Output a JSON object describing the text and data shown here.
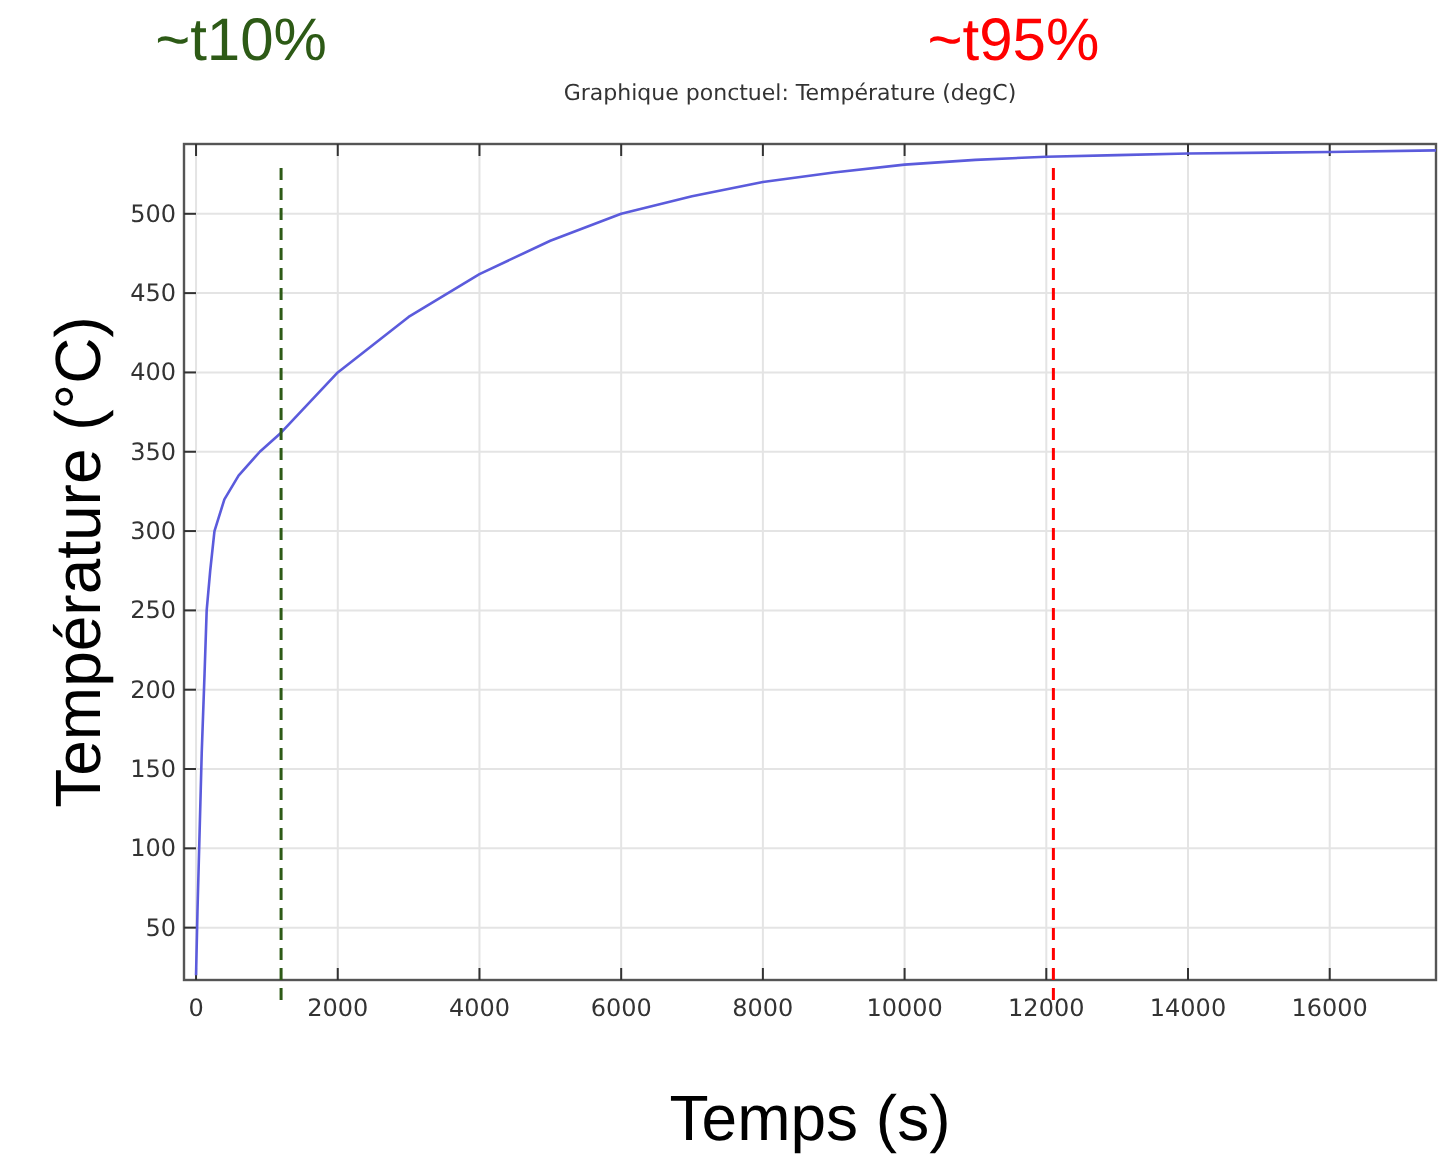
{
  "chart_data": {
    "type": "line",
    "title": "Graphique ponctuel: Température (degC)",
    "xlabel": "Temps (s)",
    "ylabel": "Température (°C)",
    "x": [
      0,
      20,
      50,
      80,
      120,
      150,
      200,
      260,
      400,
      600,
      900,
      1200,
      2000,
      3000,
      4000,
      5000,
      6000,
      7000,
      8000,
      9000,
      10000,
      11000,
      12000,
      13000,
      14000,
      16000,
      17500
    ],
    "series": [
      {
        "color": "#5b5bdc",
        "values": [
          20,
          60,
          110,
          160,
          210,
          250,
          275,
          300,
          320,
          335,
          350,
          362,
          400,
          435,
          462,
          483,
          500,
          511,
          520,
          526,
          531,
          534,
          536,
          537,
          538,
          539,
          540
        ]
      }
    ],
    "xlim": [
      -170,
      17500
    ],
    "ylim": [
      17,
      544
    ],
    "xticks": [
      0,
      2000,
      4000,
      6000,
      8000,
      10000,
      12000,
      14000,
      16000
    ],
    "yticks": [
      50,
      100,
      150,
      200,
      250,
      300,
      350,
      400,
      450,
      500
    ],
    "grid": true,
    "line_style": "solid",
    "ref_lines": [
      {
        "axis": "x",
        "value": 1200,
        "label": "~t10%",
        "color": "#2d5a16",
        "line_style": "dashed"
      },
      {
        "axis": "x",
        "value": 12100,
        "label": "~t95%",
        "color": "#ff0000",
        "line_style": "dashed"
      }
    ]
  }
}
